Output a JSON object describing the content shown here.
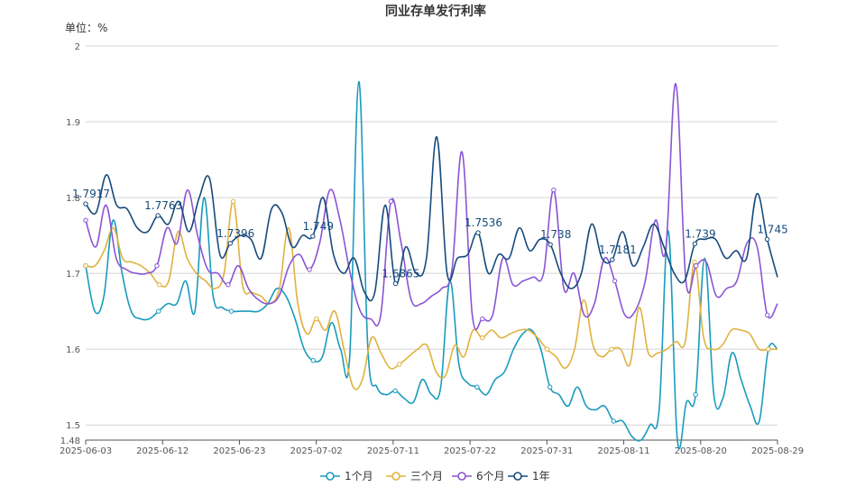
{
  "chart_data": {
    "type": "line",
    "title": "同业存单发行利率",
    "unit_label": "单位：%",
    "xlabel": "",
    "ylabel": "",
    "ylim": [
      1.48,
      2.0
    ],
    "y_ticks": [
      "1.48",
      "1.5",
      "1.6",
      "1.7",
      "1.8",
      "1.9",
      "2"
    ],
    "x_ticks": [
      "2025-06-03",
      "2025-06-12",
      "2025-06-23",
      "2025-07-02",
      "2025-07-11",
      "2025-07-22",
      "2025-07-31",
      "2025-08-11",
      "2025-08-20",
      "2025-08-29"
    ],
    "grid": "horizontal",
    "legend_position": "bottom",
    "series": [
      {
        "name": "1个月",
        "color": "#1a9bbd",
        "values": [
          1.71,
          1.65,
          1.67,
          1.77,
          1.7,
          1.65,
          1.64,
          1.64,
          1.65,
          1.66,
          1.66,
          1.69,
          1.65,
          1.8,
          1.67,
          1.655,
          1.65,
          1.65,
          1.65,
          1.65,
          1.66,
          1.68,
          1.67,
          1.64,
          1.6,
          1.585,
          1.59,
          1.635,
          1.6,
          1.59,
          1.953,
          1.6,
          1.55,
          1.54,
          1.545,
          1.535,
          1.53,
          1.56,
          1.54,
          1.55,
          1.69,
          1.58,
          1.555,
          1.55,
          1.54,
          1.56,
          1.57,
          1.6,
          1.62,
          1.625,
          1.6,
          1.55,
          1.54,
          1.525,
          1.55,
          1.525,
          1.52,
          1.525,
          1.505,
          1.505,
          1.485,
          1.48,
          1.5,
          1.52,
          1.756,
          1.48,
          1.53,
          1.54,
          1.72,
          1.54,
          1.535,
          1.595,
          1.56,
          1.525,
          1.505,
          1.6,
          1.6
        ]
      },
      {
        "name": "三个月",
        "color": "#e0b23f",
        "values": [
          1.71,
          1.71,
          1.73,
          1.76,
          1.72,
          1.715,
          1.71,
          1.7,
          1.685,
          1.69,
          1.755,
          1.72,
          1.7,
          1.69,
          1.68,
          1.7,
          1.795,
          1.685,
          1.675,
          1.67,
          1.66,
          1.68,
          1.76,
          1.66,
          1.62,
          1.64,
          1.625,
          1.65,
          1.6,
          1.55,
          1.56,
          1.615,
          1.595,
          1.575,
          1.58,
          1.59,
          1.6,
          1.605,
          1.57,
          1.565,
          1.605,
          1.59,
          1.625,
          1.615,
          1.625,
          1.615,
          1.62,
          1.625,
          1.625,
          1.615,
          1.6,
          1.59,
          1.575,
          1.6,
          1.665,
          1.605,
          1.59,
          1.6,
          1.6,
          1.58,
          1.655,
          1.595,
          1.595,
          1.6,
          1.61,
          1.61,
          1.715,
          1.615,
          1.6,
          1.605,
          1.625,
          1.625,
          1.62,
          1.6,
          1.6,
          1.6
        ]
      },
      {
        "name": "6个月",
        "color": "#8a55d4",
        "values": [
          1.77,
          1.735,
          1.79,
          1.72,
          1.705,
          1.7,
          1.7,
          1.71,
          1.76,
          1.74,
          1.81,
          1.75,
          1.705,
          1.7,
          1.685,
          1.71,
          1.68,
          1.665,
          1.66,
          1.67,
          1.71,
          1.725,
          1.705,
          1.74,
          1.81,
          1.77,
          1.7,
          1.65,
          1.64,
          1.645,
          1.795,
          1.74,
          1.665,
          1.66,
          1.67,
          1.68,
          1.705,
          1.86,
          1.645,
          1.64,
          1.645,
          1.72,
          1.685,
          1.69,
          1.695,
          1.7,
          1.81,
          1.68,
          1.7,
          1.645,
          1.66,
          1.72,
          1.69,
          1.645,
          1.65,
          1.69,
          1.77,
          1.73,
          1.95,
          1.69,
          1.71,
          1.715,
          1.67,
          1.68,
          1.69,
          1.74,
          1.735,
          1.645,
          1.66
        ]
      },
      {
        "name": "1年",
        "color": "#174a7c",
        "values": [
          1.7917,
          1.78,
          1.83,
          1.79,
          1.785,
          1.76,
          1.755,
          1.7763,
          1.765,
          1.795,
          1.755,
          1.8,
          1.825,
          1.725,
          1.7396,
          1.75,
          1.745,
          1.72,
          1.785,
          1.78,
          1.735,
          1.75,
          1.749,
          1.8,
          1.725,
          1.7,
          1.72,
          1.675,
          1.675,
          1.79,
          1.6865,
          1.735,
          1.7,
          1.72,
          1.88,
          1.7,
          1.72,
          1.725,
          1.7536,
          1.7,
          1.725,
          1.72,
          1.76,
          1.73,
          1.745,
          1.738,
          1.7,
          1.68,
          1.7,
          1.765,
          1.72,
          1.7181,
          1.755,
          1.71,
          1.735,
          1.765,
          1.735,
          1.7,
          1.69,
          1.739,
          1.745,
          1.745,
          1.72,
          1.73,
          1.72,
          1.805,
          1.745,
          1.695
        ]
      }
    ],
    "point_labels": [
      "1.7917",
      "1.7763",
      "1.7396",
      "1.749",
      "1.6865",
      "1.7536",
      "1.738",
      "1.7181",
      "1.739",
      "1.745"
    ]
  }
}
